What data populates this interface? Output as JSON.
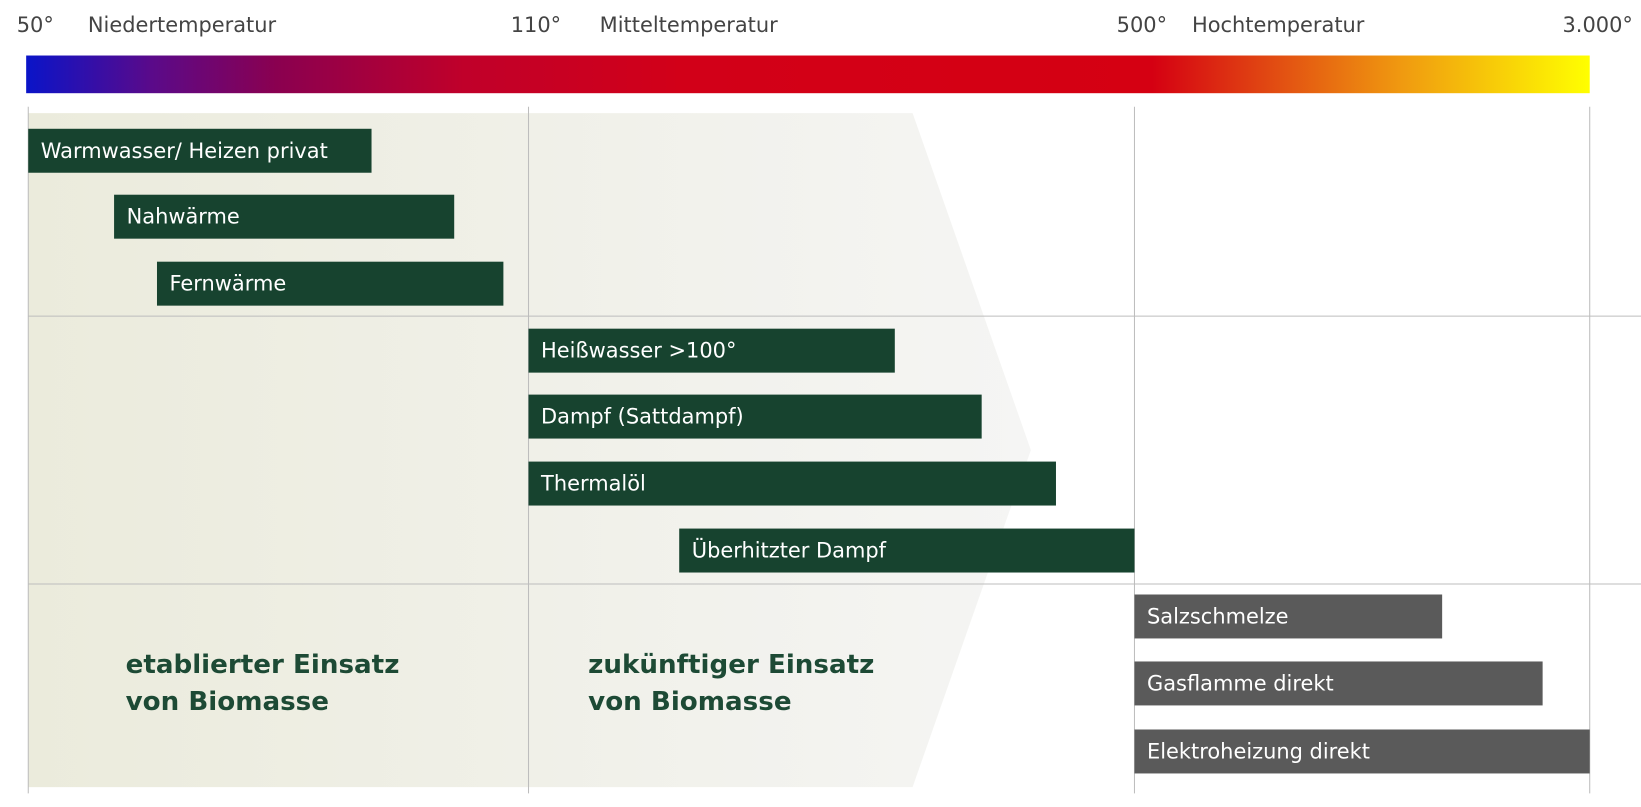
{
  "scale": {
    "ticks": [
      "50°",
      "110°",
      "500°",
      "3.000°"
    ],
    "zones": [
      "Niedertemperatur",
      "Mitteltemperatur",
      "Hochtemperatur"
    ]
  },
  "bars": [
    {
      "label": "Warmwasser/ Heizen privat"
    },
    {
      "label": "Nahwärme"
    },
    {
      "label": "Fernwärme"
    },
    {
      "label": "Heißwasser >100°"
    },
    {
      "label": "Dampf (Sattdampf)"
    },
    {
      "label": "Thermalöl"
    },
    {
      "label": "Überhitzter Dampf"
    },
    {
      "label": "Salzschmelze"
    },
    {
      "label": "Gasflamme direkt"
    },
    {
      "label": "Elektroheizung direkt"
    }
  ],
  "notes": [
    {
      "lines": [
        "etablierter Einsatz",
        "von Biomasse"
      ]
    },
    {
      "lines": [
        "zukünftiger Einsatz",
        "von Biomasse"
      ]
    }
  ]
}
